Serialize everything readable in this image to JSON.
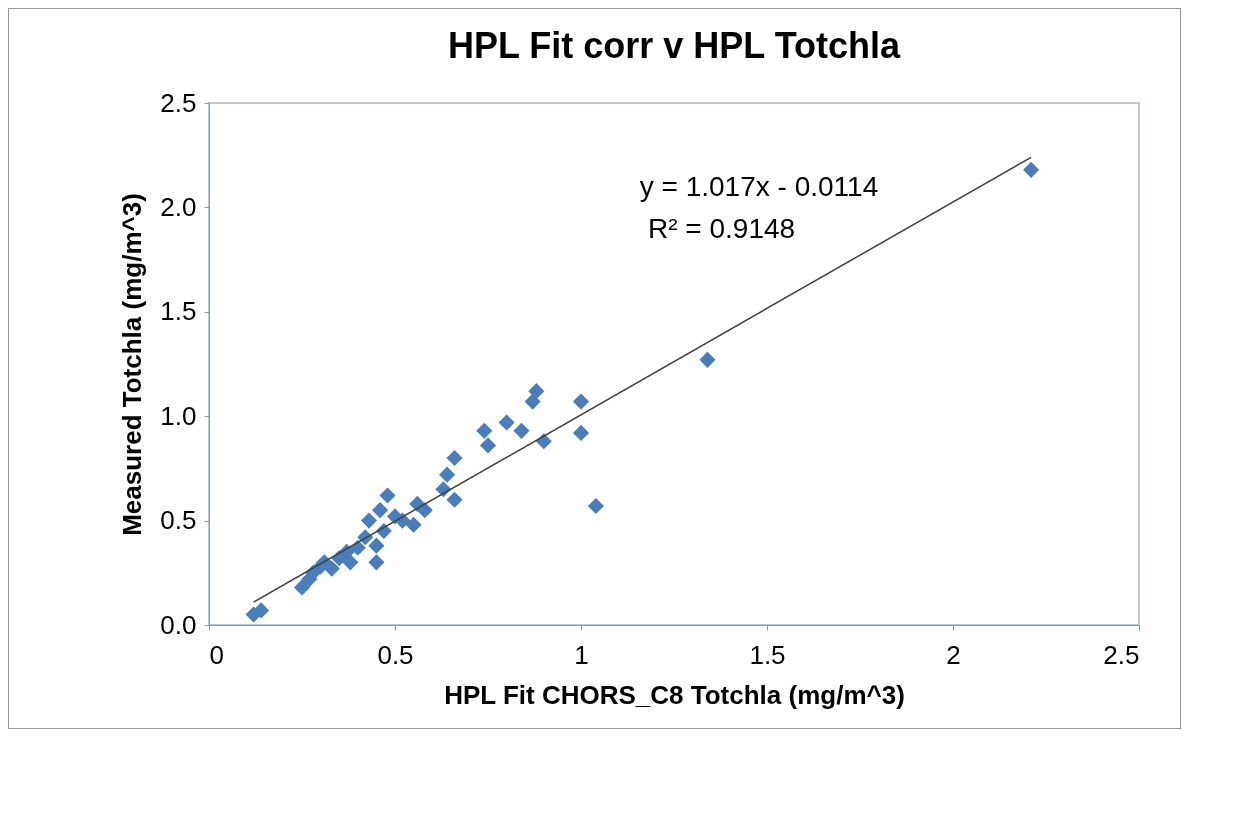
{
  "chart_data": {
    "type": "scatter",
    "title": "HPL Fit corr v HPL Totchla",
    "xlabel": "HPL Fit CHORS_C8 Totchla (mg/m^3)",
    "ylabel": "Measured Totchla (mg/m^3)",
    "xlim": [
      0,
      2.5
    ],
    "xticks": [
      0,
      0.5,
      1,
      1.5,
      2,
      2.5
    ],
    "ylim": [
      0,
      2.5
    ],
    "yticks": [
      {
        "value": 0,
        "label": "0.0"
      },
      0.5,
      {
        "value": 1,
        "label": "1.0"
      },
      1.5,
      {
        "value": 2,
        "label": "2.0"
      },
      2.5
    ],
    "grid": false,
    "annotations": [
      "y = 1.017x - 0.0114",
      "R² = 0.9148"
    ],
    "series": [
      {
        "marker": "diamond",
        "color": "#4a7ebb",
        "x": [
          0.12,
          0.14,
          0.25,
          0.27,
          0.28,
          0.3,
          0.31,
          0.33,
          0.35,
          0.37,
          0.38,
          0.4,
          0.42,
          0.43,
          0.45,
          0.45,
          0.46,
          0.47,
          0.48,
          0.5,
          0.52,
          0.55,
          0.56,
          0.58,
          0.63,
          0.64,
          0.66,
          0.66,
          0.74,
          0.75,
          0.8,
          0.84,
          0.87,
          0.88,
          0.9,
          1.0,
          1.0,
          1.04,
          1.34,
          2.21
        ],
        "values": [
          0.05,
          0.07,
          0.18,
          0.22,
          0.25,
          0.28,
          0.3,
          0.27,
          0.32,
          0.35,
          0.3,
          0.37,
          0.42,
          0.5,
          0.38,
          0.3,
          0.55,
          0.45,
          0.62,
          0.52,
          0.5,
          0.48,
          0.58,
          0.55,
          0.65,
          0.72,
          0.8,
          0.6,
          0.93,
          0.86,
          0.97,
          0.93,
          1.07,
          1.12,
          0.88,
          1.07,
          0.92,
          0.57,
          1.27,
          2.18
        ]
      },
      {
        "type": "line",
        "color": "#404040",
        "x": [
          0.12,
          2.21
        ],
        "values": [
          0.11,
          2.24
        ]
      }
    ]
  }
}
